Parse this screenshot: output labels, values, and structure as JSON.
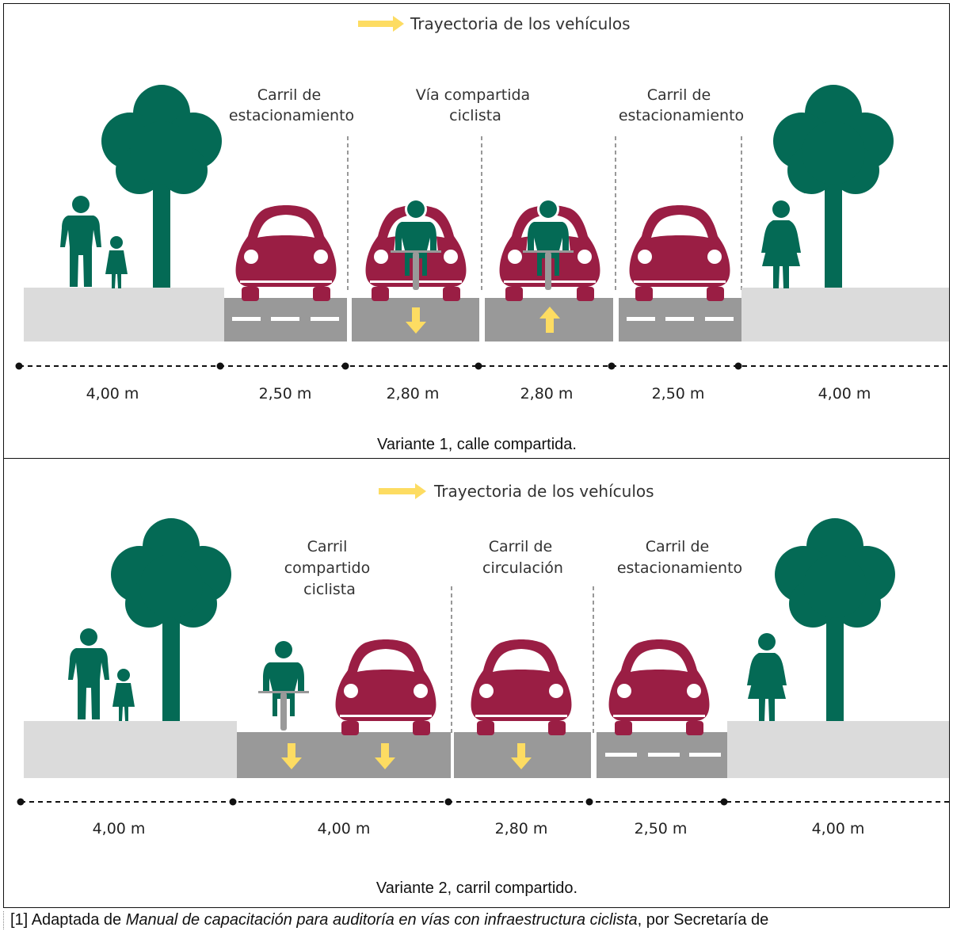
{
  "legend": {
    "text": "Trayectoria de los vehículos"
  },
  "variant1": {
    "labels": [
      [
        "Carril de",
        "estacionamiento"
      ],
      [
        "Vía compartida",
        "ciclista"
      ],
      [
        "Carril de",
        "estacionamiento"
      ]
    ],
    "measurements": [
      "4,00 m",
      "2,50 m",
      "2,80 m",
      "2,80 m",
      "2,50 m",
      "4,00 m"
    ],
    "caption": "Variante 1, calle compartida."
  },
  "variant2": {
    "labels": [
      [
        "Carril",
        "compartido",
        "ciclista"
      ],
      [
        "Carril de",
        "circulación"
      ],
      [
        "Carril de",
        "estacionamiento"
      ]
    ],
    "measurements": [
      "4,00 m",
      "4,00 m",
      "2,80 m",
      "2,50 m",
      "4,00 m"
    ],
    "caption": "Variante 2, carril compartido."
  },
  "footnote": {
    "prefix": "[1] Adaptada de ",
    "title": "Manual de capacitación para auditoría en vías con infraestructura ciclista",
    "suffix": ", por Secretaría de"
  },
  "colors": {
    "tree_green": "#046a55",
    "car_red": "#9a1e44",
    "road_gray": "#999999",
    "sidewalk_gray": "#dbdbdb",
    "arrow_yellow": "#fddc62"
  }
}
